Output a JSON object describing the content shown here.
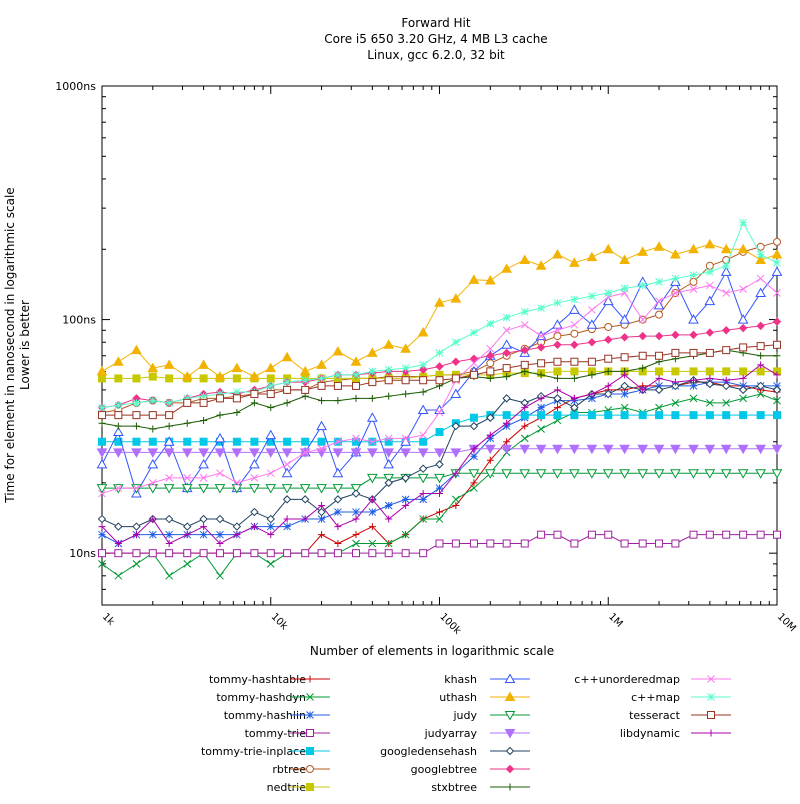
{
  "chart_data": {
    "type": "line",
    "title": [
      "Forward Hit",
      "Core i5 650 3.20 GHz, 4 MB L3 cache",
      "Linux, gcc 6.2.0, 32 bit"
    ],
    "xlabel": "Number of elements in logarithmic scale",
    "ylabel": [
      "Time for element in nanosecond in logarithmic scale",
      "Lower is better"
    ],
    "x_scale": "log",
    "y_scale": "log",
    "xlim": [
      1000,
      10000000
    ],
    "ylim": [
      6,
      1000
    ],
    "x_ticks": [
      {
        "value": 1000,
        "label": "1k"
      },
      {
        "value": 10000,
        "label": "10k"
      },
      {
        "value": 100000,
        "label": "100k"
      },
      {
        "value": 1000000,
        "label": "1M"
      },
      {
        "value": 10000000,
        "label": "10M"
      }
    ],
    "y_ticks": [
      {
        "value": 10,
        "label": "10ns"
      },
      {
        "value": 100,
        "label": "100ns"
      },
      {
        "value": 1000,
        "label": "1000ns"
      }
    ],
    "grid": false,
    "legend_position": "bottom",
    "x": [
      1000,
      1250,
      1600,
      2000,
      2500,
      3200,
      4000,
      5000,
      6300,
      8000,
      10000,
      12500,
      16000,
      20000,
      25000,
      32000,
      40000,
      50000,
      63000,
      80000,
      100000,
      125000,
      160000,
      200000,
      250000,
      320000,
      400000,
      500000,
      630000,
      800000,
      1000000,
      1250000,
      1600000,
      2000000,
      2500000,
      3200000,
      4000000,
      5000000,
      6300000,
      8000000,
      10000000
    ],
    "series": [
      {
        "name": "tommy-hashtable",
        "color": "#cc0000",
        "marker": "plus",
        "values": [
          10,
          10,
          10,
          10,
          10,
          10,
          10,
          10,
          10,
          10,
          10,
          10,
          10,
          12,
          11,
          12,
          13,
          11,
          12,
          14,
          15,
          16,
          20,
          25,
          30,
          35,
          38,
          42,
          46,
          48,
          50,
          50,
          52,
          52,
          52,
          54,
          54,
          52,
          52,
          50,
          49
        ]
      },
      {
        "name": "tommy-hashdyn",
        "color": "#009933",
        "marker": "x",
        "values": [
          9,
          8,
          9,
          10,
          8,
          9,
          10,
          8,
          10,
          10,
          9,
          10,
          10,
          10,
          10,
          11,
          11,
          11,
          12,
          14,
          14,
          17,
          19,
          22,
          27,
          31,
          34,
          37,
          40,
          40,
          41,
          42,
          40,
          42,
          44,
          46,
          44,
          44,
          46,
          48,
          45
        ]
      },
      {
        "name": "tommy-hashlin",
        "color": "#1f5ce6",
        "marker": "star",
        "values": [
          12,
          11,
          12,
          12,
          12,
          12,
          12,
          12,
          12,
          13,
          13,
          13,
          14,
          14,
          15,
          15,
          15,
          16,
          17,
          17,
          19,
          22,
          26,
          31,
          35,
          38,
          42,
          45,
          45,
          46,
          48,
          48,
          50,
          52,
          52,
          52,
          54,
          54,
          52,
          52,
          52
        ]
      },
      {
        "name": "tommy-trie",
        "color": "#a020a0",
        "marker": "open-square",
        "values": [
          10,
          10,
          10,
          10,
          10,
          10,
          10,
          10,
          10,
          10,
          10,
          10,
          10,
          10,
          10,
          10,
          10,
          10,
          10,
          10,
          11,
          11,
          11,
          11,
          11,
          11,
          12,
          12,
          11,
          12,
          12,
          11,
          11,
          11,
          11,
          12,
          12,
          12,
          12,
          12,
          12
        ]
      },
      {
        "name": "tommy-trie-inplace",
        "color": "#00c8e6",
        "marker": "filled-square",
        "values": [
          30,
          30,
          30,
          30,
          30,
          30,
          30,
          30,
          30,
          30,
          30,
          30,
          30,
          30,
          30,
          30,
          30,
          30,
          30,
          30,
          33,
          36,
          38,
          39,
          39,
          39,
          39,
          39,
          39,
          39,
          39,
          39,
          39,
          39,
          39,
          39,
          39,
          39,
          39,
          39,
          39
        ]
      },
      {
        "name": "rbtree",
        "color": "#b35a1f",
        "marker": "open-circle",
        "values": [
          40,
          41,
          44,
          45,
          44,
          44,
          46,
          46,
          47,
          48,
          50,
          50,
          50,
          54,
          55,
          56,
          56,
          57,
          57,
          57,
          58,
          58,
          60,
          65,
          70,
          75,
          80,
          85,
          87,
          91,
          93,
          95,
          100,
          105,
          130,
          145,
          170,
          180,
          195,
          205,
          215
        ]
      },
      {
        "name": "nedtrie",
        "color": "#c8c800",
        "marker": "filled-square",
        "values": [
          56,
          56,
          56,
          57,
          56,
          56,
          56,
          56,
          56,
          56,
          56,
          56,
          56,
          56,
          56,
          56,
          56,
          56,
          56,
          57,
          58,
          58,
          58,
          58,
          59,
          59,
          59,
          60,
          60,
          60,
          60,
          60,
          60,
          60,
          60,
          60,
          60,
          60,
          60,
          60,
          60
        ]
      },
      {
        "name": "khash",
        "color": "#3355ff",
        "marker": "open-triangle",
        "values": [
          24,
          33,
          18,
          24,
          30,
          19,
          24,
          31,
          19,
          24,
          32,
          22,
          27,
          35,
          22,
          27,
          38,
          24,
          30,
          41,
          41,
          48,
          60,
          70,
          78,
          72,
          85,
          95,
          110,
          95,
          120,
          100,
          145,
          115,
          145,
          100,
          120,
          160,
          100,
          130,
          160
        ]
      },
      {
        "name": "uthash",
        "color": "#f2b200",
        "marker": "filled-triangle",
        "values": [
          60,
          66,
          74,
          62,
          64,
          57,
          64,
          57,
          62,
          57,
          62,
          69,
          60,
          64,
          73,
          66,
          72,
          78,
          75,
          88,
          118,
          123,
          148,
          147,
          165,
          180,
          170,
          190,
          175,
          185,
          200,
          180,
          195,
          205,
          190,
          200,
          210,
          200,
          200,
          180,
          190
        ]
      },
      {
        "name": "judy",
        "color": "#009933",
        "marker": "open-triangle-down",
        "values": [
          19,
          19,
          19,
          19,
          19,
          19,
          19,
          19,
          19,
          19,
          19,
          19,
          19,
          19,
          19,
          19,
          21,
          21,
          21,
          21,
          21,
          22,
          22,
          22,
          22,
          22,
          22,
          22,
          22,
          22,
          22,
          22,
          22,
          22,
          22,
          22,
          22,
          22,
          22,
          22,
          22
        ]
      },
      {
        "name": "judyarray",
        "color": "#b070ff",
        "marker": "filled-triangle-down",
        "values": [
          27,
          27,
          27,
          27,
          27,
          27,
          27,
          27,
          27,
          27,
          27,
          27,
          27,
          27,
          27,
          27,
          27,
          27,
          27,
          27,
          27,
          27,
          28,
          28,
          28,
          28,
          28,
          28,
          28,
          28,
          28,
          28,
          28,
          28,
          28,
          28,
          28,
          28,
          28,
          28,
          28
        ]
      },
      {
        "name": "googledensehash",
        "color": "#204060",
        "marker": "open-diamond",
        "values": [
          14,
          13,
          13,
          14,
          14,
          13,
          14,
          14,
          13,
          15,
          14,
          17,
          17,
          15,
          17,
          18,
          17,
          20,
          21,
          23,
          24,
          35,
          35,
          38,
          46,
          44,
          47,
          46,
          42,
          48,
          48,
          52,
          50,
          50,
          52,
          55,
          53,
          52,
          50,
          52,
          50
        ]
      },
      {
        "name": "googlebtree",
        "color": "#ee3388",
        "marker": "filled-diamond",
        "values": [
          42,
          43,
          46,
          45,
          44,
          46,
          48,
          49,
          48,
          50,
          52,
          54,
          54,
          56,
          58,
          58,
          59,
          60,
          60,
          61,
          63,
          66,
          68,
          70,
          72,
          74,
          76,
          78,
          78,
          80,
          82,
          84,
          85,
          85,
          86,
          86,
          88,
          90,
          92,
          94,
          98
        ]
      },
      {
        "name": "stxbtree",
        "color": "#1a5c00",
        "marker": "plus",
        "values": [
          36,
          35,
          35,
          34,
          35,
          36,
          37,
          39,
          40,
          44,
          42,
          44,
          47,
          45,
          45,
          46,
          46,
          47,
          48,
          49,
          52,
          56,
          57,
          56,
          57,
          60,
          58,
          56,
          56,
          58,
          60,
          60,
          62,
          66,
          68,
          70,
          72,
          74,
          72,
          70,
          70
        ]
      },
      {
        "name": "c++unorderedmap",
        "color": "#ff77ee",
        "marker": "x",
        "values": [
          18,
          19,
          19,
          20,
          21,
          21,
          21,
          22,
          20,
          21,
          22,
          24,
          27,
          28,
          30,
          31,
          30,
          31,
          31,
          32,
          40,
          55,
          65,
          75,
          90,
          95,
          85,
          90,
          95,
          110,
          125,
          130,
          100,
          120,
          130,
          135,
          140,
          130,
          135,
          150,
          130
        ]
      },
      {
        "name": "c++map",
        "color": "#55ffcc",
        "marker": "star",
        "values": [
          42,
          43,
          44,
          45,
          44,
          46,
          47,
          48,
          49,
          49,
          52,
          54,
          55,
          56,
          58,
          58,
          60,
          61,
          62,
          64,
          72,
          80,
          88,
          96,
          102,
          108,
          112,
          118,
          122,
          126,
          130,
          136,
          140,
          145,
          150,
          155,
          160,
          170,
          260,
          190,
          175
        ]
      },
      {
        "name": "tesseract",
        "color": "#993322",
        "marker": "open-square",
        "values": [
          39,
          39,
          39,
          39,
          39,
          44,
          44,
          46,
          46,
          48,
          48,
          50,
          50,
          52,
          52,
          52,
          54,
          55,
          55,
          55,
          55,
          56,
          58,
          60,
          62,
          64,
          65,
          66,
          66,
          66,
          68,
          69,
          70,
          70,
          72,
          72,
          72,
          74,
          76,
          77,
          78
        ]
      },
      {
        "name": "libdynamic",
        "color": "#aa00aa",
        "marker": "plus",
        "values": [
          13,
          11,
          12,
          14,
          11,
          12,
          13,
          11,
          12,
          13,
          12,
          14,
          14,
          16,
          13,
          14,
          17,
          14,
          16,
          18,
          18,
          22,
          28,
          32,
          36,
          42,
          46,
          50,
          46,
          48,
          52,
          58,
          50,
          56,
          54,
          55,
          56,
          55,
          56,
          64,
          58
        ]
      }
    ]
  }
}
